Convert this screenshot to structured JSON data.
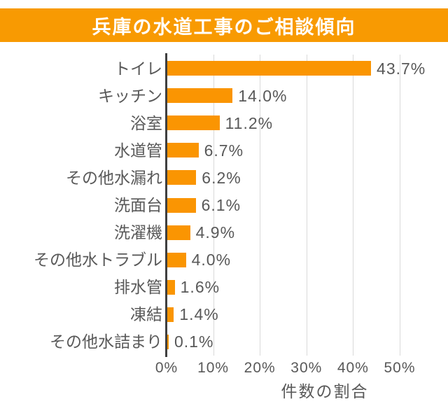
{
  "page": {
    "background": "#ffffff"
  },
  "header": {
    "title": "兵庫の水道工事のご相談傾向",
    "bg_color": "#f89a02",
    "text_color": "#ffffff"
  },
  "chart_data": {
    "type": "bar",
    "orientation": "horizontal",
    "title": "兵庫の水道工事のご相談傾向",
    "categories": [
      "トイレ",
      "キッチン",
      "浴室",
      "水道管",
      "その他水漏れ",
      "洗面台",
      "洗濯機",
      "その他水トラブル",
      "排水管",
      "凍結",
      "その他水詰まり"
    ],
    "values": [
      43.7,
      14.0,
      11.2,
      6.7,
      6.2,
      6.1,
      4.9,
      4.0,
      1.6,
      1.4,
      0.1
    ],
    "data_labels": [
      "43.7%",
      "14.0%",
      "11.2%",
      "6.7%",
      "6.2%",
      "6.1%",
      "4.9%",
      "4.0%",
      "1.6%",
      "1.4%",
      "0.1%"
    ],
    "xlabel": "件数の割合",
    "ylabel": "",
    "xlim": [
      0,
      50
    ],
    "x_ticks": [
      "0%",
      "10%",
      "20%",
      "30%",
      "40%",
      "50%"
    ],
    "x_tick_values": [
      0,
      10,
      20,
      30,
      40,
      50
    ],
    "grid": "vertical-solid",
    "legend": "none",
    "bar_color": "#fa9502",
    "gridline_color": "#d9d9d9",
    "axis_line_color": "#3f3f3f",
    "text_color": "#595959"
  }
}
